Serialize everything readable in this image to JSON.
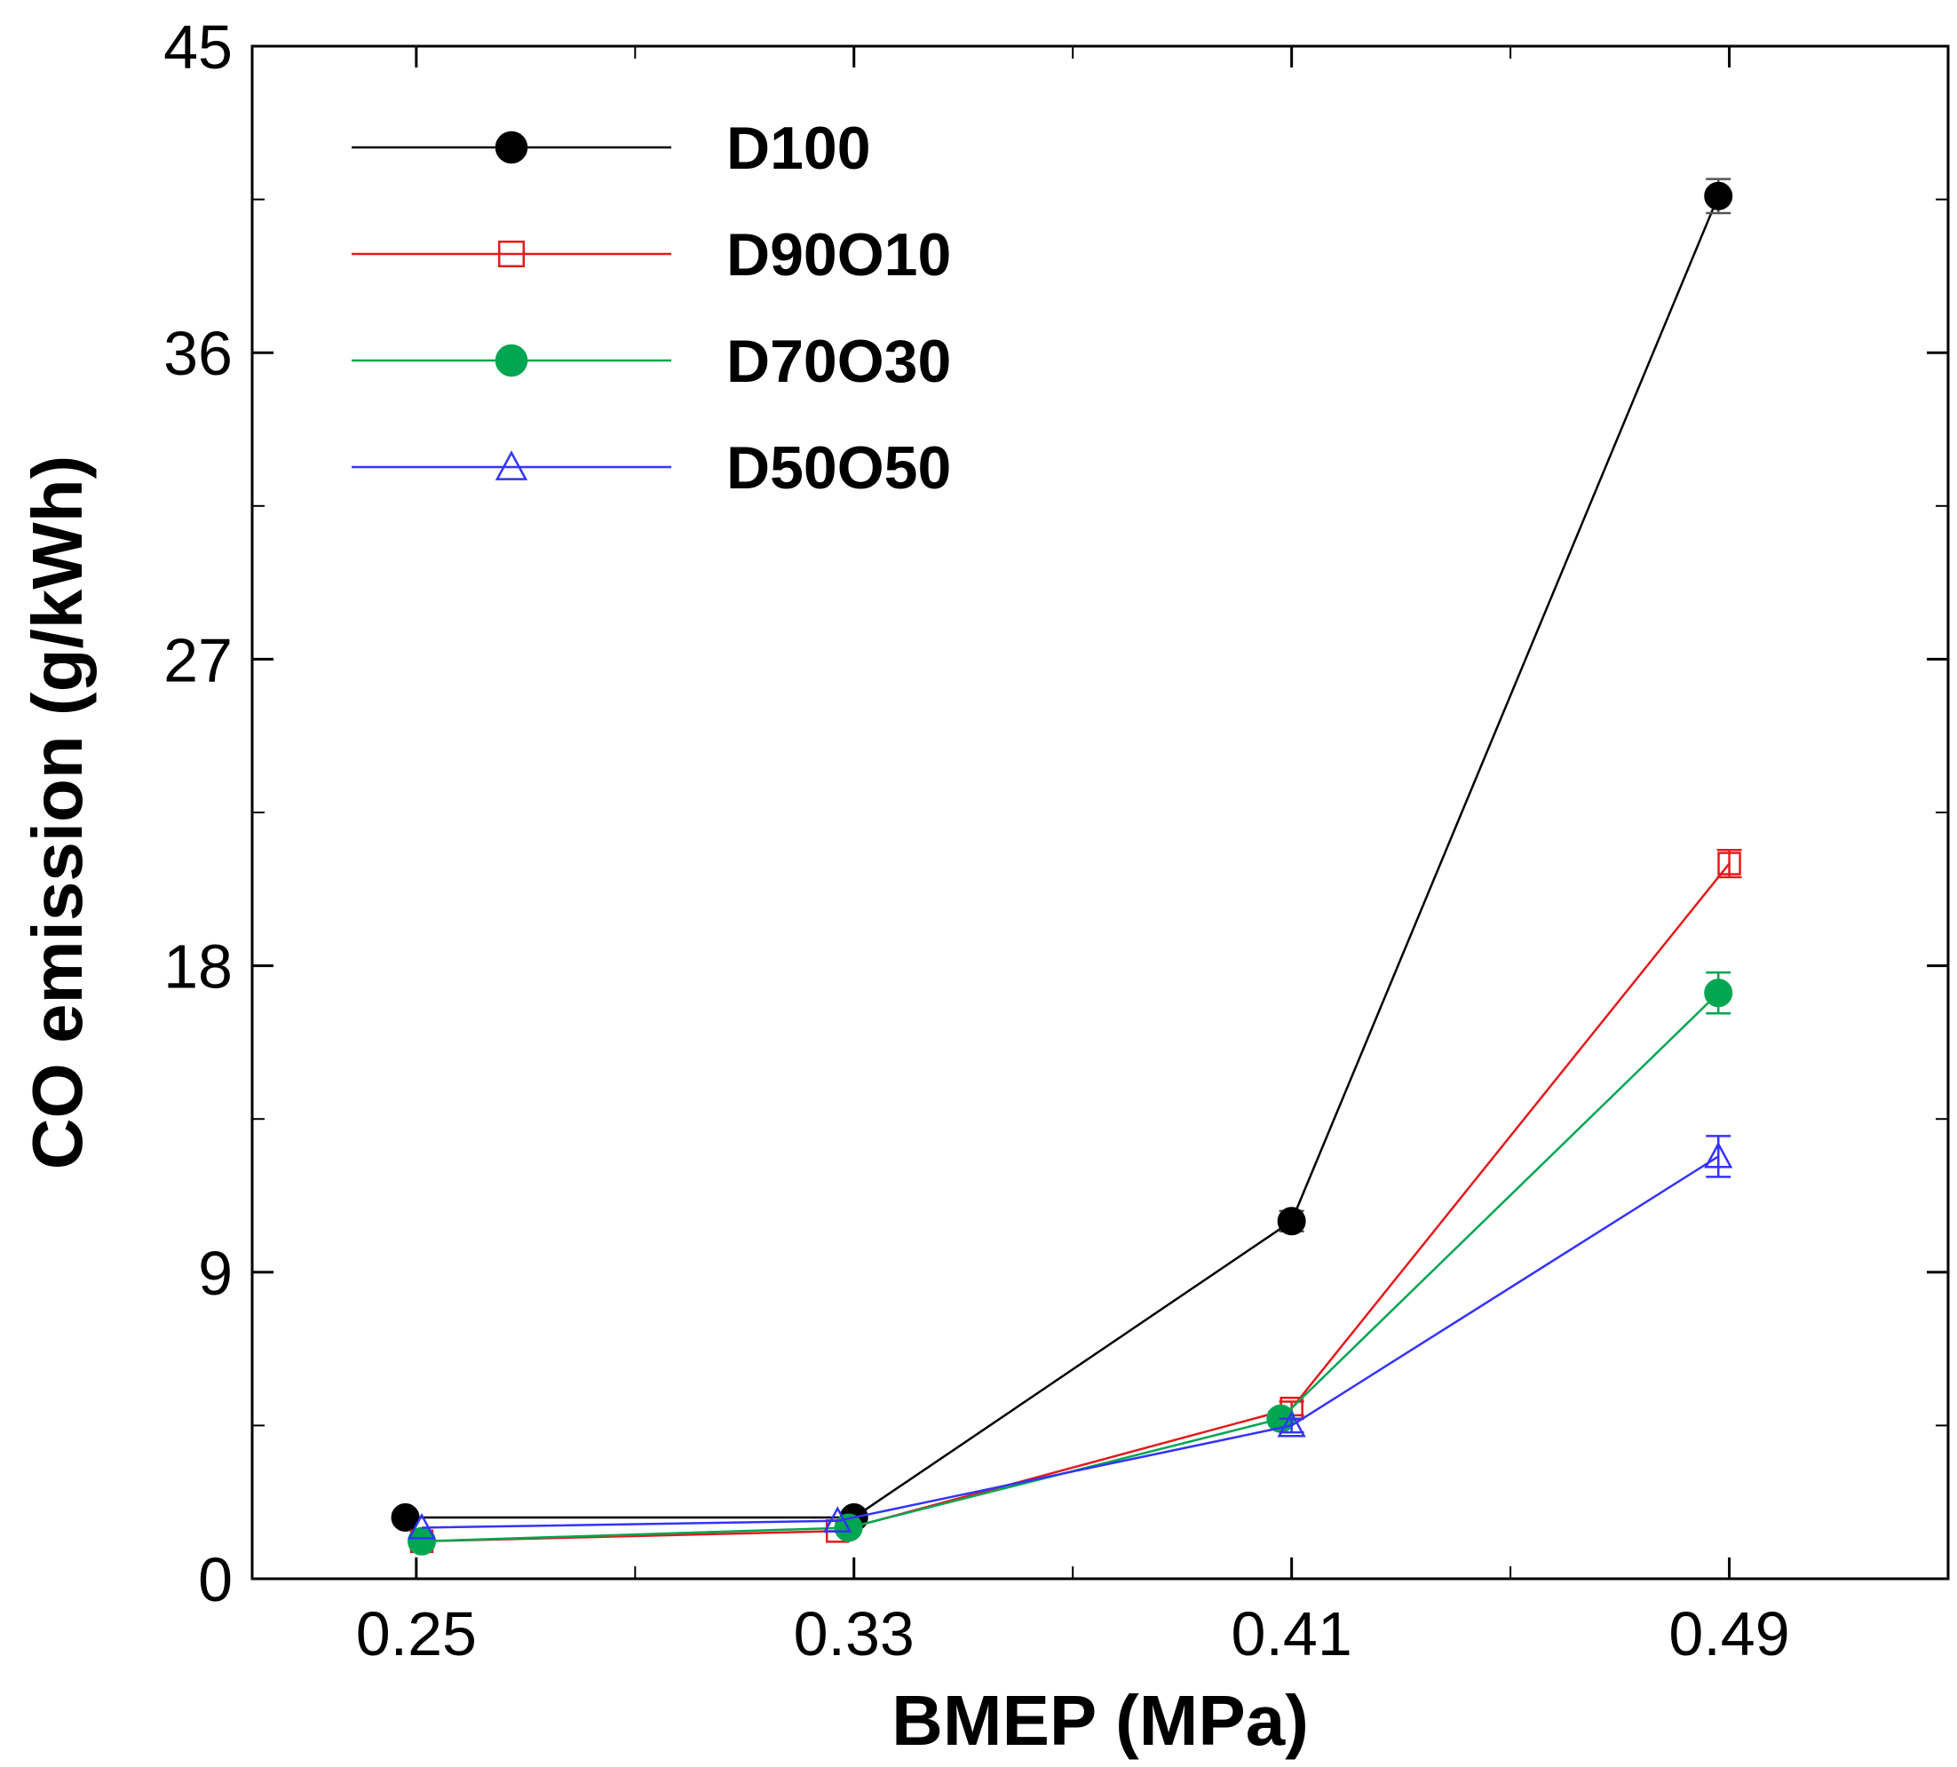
{
  "chart_data": {
    "type": "line",
    "title": "",
    "xlabel": "BMEP (MPa)",
    "ylabel": "CO emission (g/kWh)",
    "categories": [
      "0.25",
      "0.33",
      "0.41",
      "0.49"
    ],
    "ylim": [
      0,
      45
    ],
    "yticks": [
      "0",
      "9",
      "18",
      "27",
      "36",
      "45"
    ],
    "legend_position": "top-left",
    "series": [
      {
        "name": "D100",
        "color": "#000000",
        "marker": "filled-circle",
        "x": [
          0.248,
          0.33,
          0.41,
          0.488
        ],
        "values": [
          1.8,
          1.8,
          10.5,
          40.6
        ],
        "errors": [
          0,
          0,
          0.3,
          0.5
        ]
      },
      {
        "name": "D90O10",
        "color": "#e41a1c",
        "marker": "open-square",
        "x": [
          0.251,
          0.327,
          0.41,
          0.49
        ],
        "values": [
          1.1,
          1.4,
          5.0,
          21.0
        ],
        "errors": [
          0,
          0,
          0.2,
          0.4
        ]
      },
      {
        "name": "D70O30",
        "color": "#00a651",
        "marker": "filled-circle",
        "x": [
          0.251,
          0.329,
          0.408,
          0.488
        ],
        "values": [
          1.1,
          1.5,
          4.7,
          17.2
        ],
        "errors": [
          0,
          0,
          0.2,
          0.6
        ]
      },
      {
        "name": "D50O50",
        "color": "#3333ff",
        "marker": "open-triangle",
        "x": [
          0.251,
          0.327,
          0.41,
          0.488
        ],
        "values": [
          1.5,
          1.7,
          4.5,
          12.4
        ],
        "errors": [
          0,
          0,
          0.2,
          0.6
        ]
      }
    ]
  }
}
